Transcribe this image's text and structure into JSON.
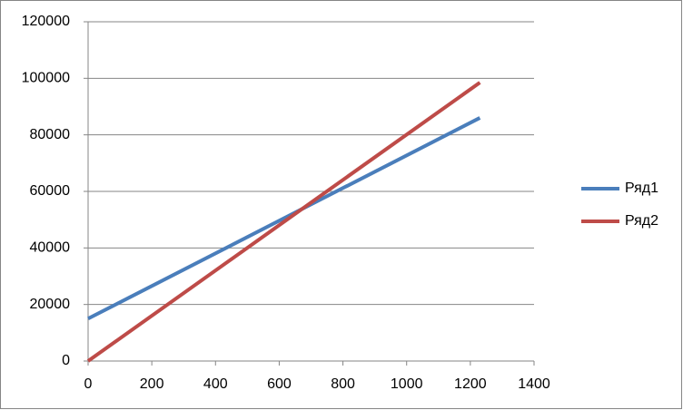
{
  "chart_data": {
    "type": "line",
    "x": [
      0,
      1230
    ],
    "series": [
      {
        "name": "Ряд1",
        "color": "#4a7ebb",
        "values": [
          15000,
          86000
        ]
      },
      {
        "name": "Ряд2",
        "color": "#be4b48",
        "values": [
          0,
          98500
        ]
      }
    ],
    "xlim": [
      0,
      1400
    ],
    "xticks": [
      0,
      200,
      400,
      600,
      800,
      1000,
      1200,
      1400
    ],
    "ylim": [
      0,
      120000
    ],
    "yticks": [
      0,
      20000,
      40000,
      60000,
      80000,
      100000,
      120000
    ],
    "grid": true,
    "legend": "right"
  }
}
